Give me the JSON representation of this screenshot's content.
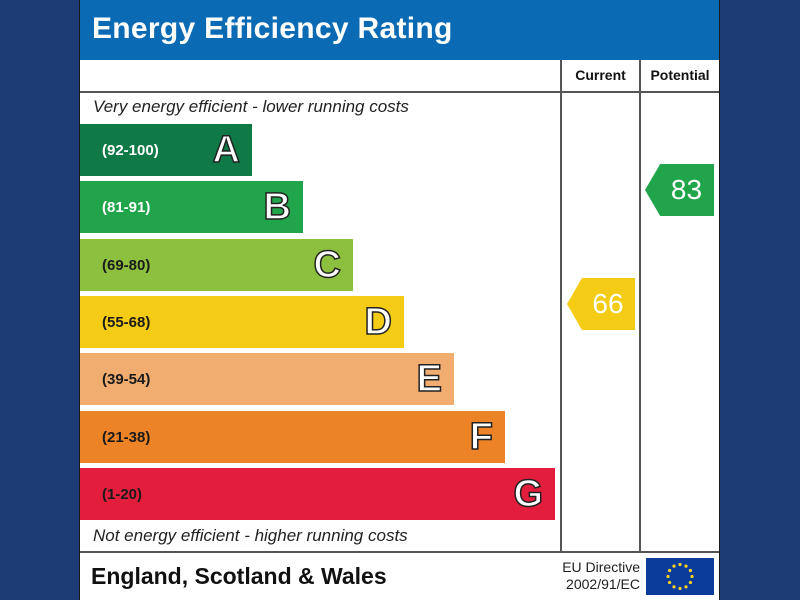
{
  "title": "Energy Efficiency Rating",
  "columns": {
    "current": "Current",
    "potential": "Potential"
  },
  "top_caption": "Very energy efficient - lower running costs",
  "bottom_caption": "Not energy efficient - higher running costs",
  "bands": [
    {
      "letter": "A",
      "range": "(92-100)",
      "color": "#0f7a46",
      "range_color": "#ffffff"
    },
    {
      "letter": "B",
      "range": "(81-91)",
      "color": "#20a54a",
      "range_color": "#ffffff"
    },
    {
      "letter": "C",
      "range": "(69-80)",
      "color": "#8dc03f",
      "range_color": "#1a1a1a"
    },
    {
      "letter": "D",
      "range": "(55-68)",
      "color": "#f4cc15",
      "range_color": "#1a1a1a"
    },
    {
      "letter": "E",
      "range": "(39-54)",
      "color": "#f1ad6f",
      "range_color": "#1a1a1a"
    },
    {
      "letter": "F",
      "range": "(21-38)",
      "color": "#ec8427",
      "range_color": "#1a1a1a"
    },
    {
      "letter": "G",
      "range": "(1-20)",
      "color": "#e31d3c",
      "range_color": "#1a1a1a"
    }
  ],
  "current": {
    "value": "66",
    "band": "D",
    "color": "#f4cc15"
  },
  "potential": {
    "value": "83",
    "band": "B",
    "color": "#20a54a"
  },
  "footer": {
    "region": "England, Scotland & Wales",
    "directive_line1": "EU Directive",
    "directive_line2": "2002/91/EC"
  },
  "icons": {
    "flag": "eu-flag-icon"
  }
}
